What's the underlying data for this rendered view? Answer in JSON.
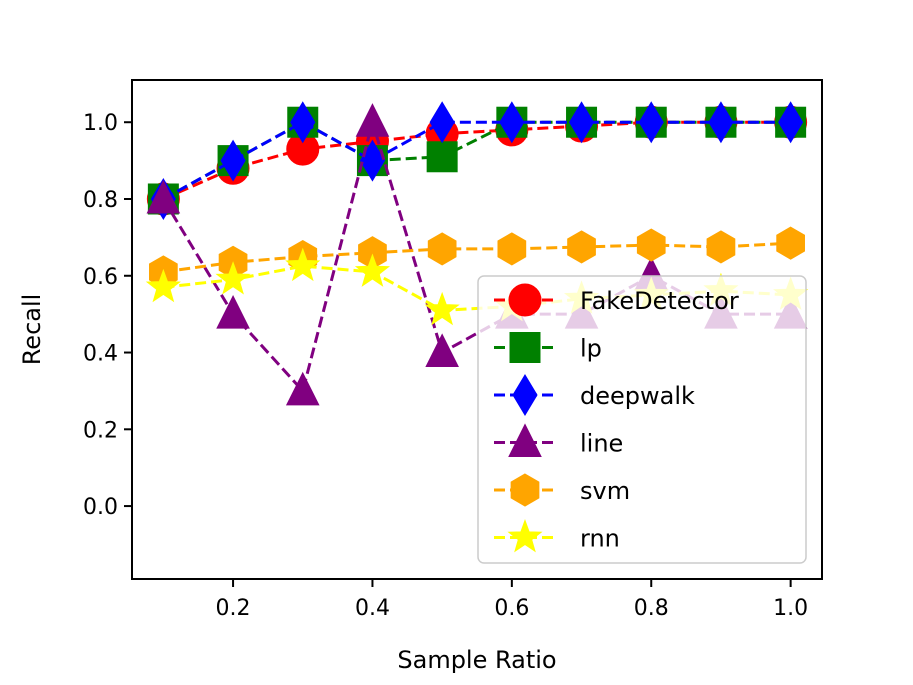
{
  "chart_data": {
    "type": "line",
    "title": "",
    "xlabel": "Sample Ratio",
    "ylabel": "Recall",
    "xlim": [
      0.055,
      1.045
    ],
    "ylim": [
      -0.19,
      1.11
    ],
    "xticks": [
      0.2,
      0.4,
      0.6,
      0.8,
      1.0
    ],
    "xtick_labels": [
      "0.2",
      "0.4",
      "0.6",
      "0.8",
      "1.0"
    ],
    "yticks": [
      0.0,
      0.2,
      0.4,
      0.6,
      0.8,
      1.0
    ],
    "ytick_labels": [
      "0.0",
      "0.2",
      "0.4",
      "0.6",
      "0.8",
      "1.0"
    ],
    "grid": false,
    "legend_position": "lower-right",
    "x": [
      0.1,
      0.2,
      0.3,
      0.4,
      0.5,
      0.6,
      0.7,
      0.8,
      0.9,
      1.0
    ],
    "series": [
      {
        "name": "FakeDetector",
        "color": "#ff0000",
        "marker": "circle",
        "values": [
          0.8,
          0.88,
          0.93,
          0.95,
          0.97,
          0.98,
          0.99,
          1.0,
          1.0,
          1.0
        ]
      },
      {
        "name": "lp",
        "color": "#008000",
        "marker": "square",
        "values": [
          0.8,
          0.9,
          1.0,
          0.9,
          0.91,
          1.0,
          1.0,
          1.0,
          1.0,
          1.0
        ]
      },
      {
        "name": "deepwalk",
        "color": "#0000ff",
        "marker": "diamond",
        "values": [
          0.8,
          0.9,
          1.0,
          0.9,
          1.0,
          1.0,
          1.0,
          1.0,
          1.0,
          1.0
        ]
      },
      {
        "name": "line",
        "color": "#800080",
        "marker": "triangle",
        "values": [
          0.8,
          0.5,
          0.3,
          1.0,
          0.4,
          0.5,
          0.5,
          0.6,
          0.5,
          0.5
        ]
      },
      {
        "name": "svm",
        "color": "#ffa500",
        "marker": "hexagon",
        "values": [
          0.61,
          0.635,
          0.65,
          0.66,
          0.67,
          0.67,
          0.675,
          0.68,
          0.675,
          0.685
        ]
      },
      {
        "name": "rnn",
        "color": "#ffff00",
        "marker": "star",
        "values": [
          0.57,
          0.59,
          0.625,
          0.61,
          0.51,
          0.52,
          0.54,
          0.55,
          0.56,
          0.55
        ]
      }
    ]
  }
}
